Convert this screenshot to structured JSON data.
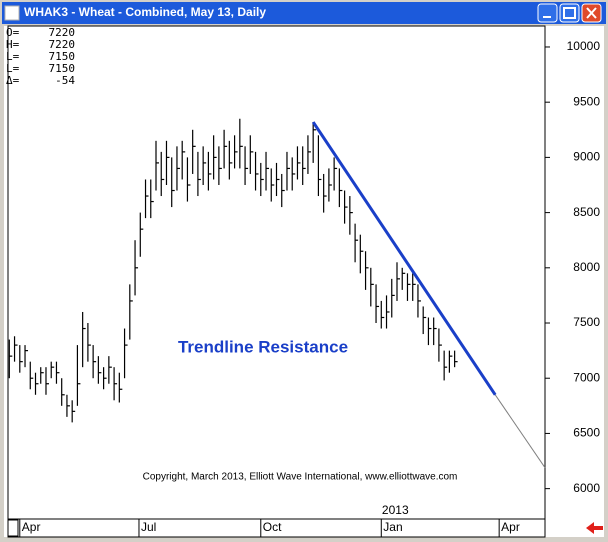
{
  "window_title": "WHAK3 - Wheat - Combined, May 13, Daily",
  "readout": [
    {
      "label": "O=",
      "value": 7220
    },
    {
      "label": "H=",
      "value": 7220
    },
    {
      "label": "L=",
      "value": 7150
    },
    {
      "label": "L=",
      "value": 7150
    },
    {
      "label": "Δ=",
      "value": -54
    }
  ],
  "chart_data": {
    "type": "hlc",
    "color": "#000000",
    "annotation": "Trendline Resistance",
    "annotation_color": "#1a3fc8",
    "copyright": "Copyright, March 2013, Elliott Wave International, www.elliottwave.com",
    "year_label": "2013",
    "xlim": [
      0,
      410
    ],
    "xticks": [
      {
        "value": 9,
        "label": "Apr"
      },
      {
        "value": 100,
        "label": "Jul"
      },
      {
        "value": 193,
        "label": "Oct"
      },
      {
        "value": 285,
        "label": "Jan"
      },
      {
        "value": 375,
        "label": "Apr"
      }
    ],
    "ylim": [
      5725,
      10190
    ],
    "yticks": [
      6000,
      6500,
      7000,
      7500,
      8000,
      8500,
      9000,
      9500,
      10000
    ],
    "x": [
      1,
      5,
      9,
      13,
      17,
      21,
      25,
      29,
      33,
      37,
      41,
      45,
      49,
      53,
      57,
      61,
      65,
      69,
      73,
      77,
      81,
      85,
      89,
      93,
      97,
      101,
      105,
      109,
      113,
      117,
      121,
      125,
      129,
      133,
      137,
      141,
      145,
      149,
      153,
      157,
      161,
      165,
      169,
      173,
      177,
      181,
      185,
      189,
      193,
      197,
      201,
      205,
      209,
      213,
      217,
      221,
      225,
      229,
      233,
      237,
      241,
      245,
      249,
      253,
      257,
      261,
      265,
      269,
      273,
      277,
      281,
      285,
      289,
      293,
      297,
      301,
      305,
      309,
      313,
      317,
      321,
      325,
      329,
      333,
      337,
      341
    ],
    "high": [
      7350,
      7380,
      7300,
      7300,
      7150,
      7050,
      7100,
      7100,
      7150,
      7150,
      7000,
      6850,
      6800,
      7300,
      7600,
      7500,
      7300,
      7200,
      7100,
      7200,
      7100,
      7050,
      7450,
      7850,
      8250,
      8500,
      8800,
      8800,
      9150,
      9050,
      9150,
      9000,
      9100,
      9150,
      9000,
      9250,
      9050,
      9100,
      9050,
      9200,
      9100,
      9250,
      9150,
      9200,
      9350,
      9100,
      9200,
      9050,
      8950,
      9050,
      8900,
      8950,
      8850,
      9050,
      9000,
      9100,
      9100,
      9200,
      9320,
      9200,
      8850,
      8900,
      9000,
      8900,
      8700,
      8650,
      8400,
      8300,
      8150,
      8000,
      7850,
      7700,
      7750,
      7900,
      8050,
      8000,
      7950,
      7950,
      7850,
      7650,
      7550,
      7550,
      7450,
      7250,
      7250,
      7250
    ],
    "low": [
      7000,
      7150,
      7050,
      7100,
      6900,
      6850,
      6950,
      6850,
      7000,
      6950,
      6750,
      6650,
      6600,
      6750,
      7100,
      7150,
      7000,
      6950,
      6900,
      6950,
      6800,
      6780,
      7000,
      7350,
      7750,
      8100,
      8450,
      8450,
      8700,
      8650,
      8750,
      8550,
      8700,
      8800,
      8600,
      8850,
      8650,
      8750,
      8700,
      8800,
      8750,
      8900,
      8800,
      8900,
      8900,
      8750,
      8850,
      8700,
      8650,
      8700,
      8600,
      8650,
      8550,
      8700,
      8700,
      8800,
      8750,
      8850,
      8950,
      8650,
      8500,
      8600,
      8700,
      8550,
      8400,
      8300,
      8050,
      7950,
      7800,
      7650,
      7500,
      7450,
      7450,
      7550,
      7700,
      7800,
      7700,
      7700,
      7550,
      7400,
      7300,
      7300,
      7150,
      6980,
      7050,
      7100
    ],
    "close": [
      7200,
      7300,
      7150,
      7250,
      7000,
      6950,
      7050,
      6950,
      7100,
      7050,
      6850,
      6750,
      6700,
      6950,
      7450,
      7300,
      7150,
      7050,
      7000,
      7100,
      6950,
      6900,
      7300,
      7700,
      8000,
      8350,
      8650,
      8600,
      8950,
      8800,
      9000,
      8700,
      8900,
      9050,
      8750,
      9100,
      8800,
      8950,
      8850,
      9000,
      8900,
      9100,
      8950,
      9050,
      9100,
      8900,
      9050,
      8850,
      8800,
      8900,
      8750,
      8800,
      8700,
      8900,
      8850,
      8950,
      8900,
      9050,
      9250,
      8800,
      8650,
      8750,
      8900,
      8700,
      8550,
      8500,
      8250,
      8150,
      8000,
      7850,
      7650,
      7550,
      7600,
      7750,
      7900,
      7950,
      7850,
      7850,
      7700,
      7550,
      7450,
      7450,
      7300,
      7100,
      7200,
      7150
    ],
    "trendline": {
      "color": "#1a3fc8",
      "x": [
        233,
        372
      ],
      "y": [
        9320,
        6850
      ]
    },
    "extension": {
      "color": "#808080",
      "x": [
        372,
        410
      ],
      "y": [
        6850,
        6190
      ]
    }
  }
}
